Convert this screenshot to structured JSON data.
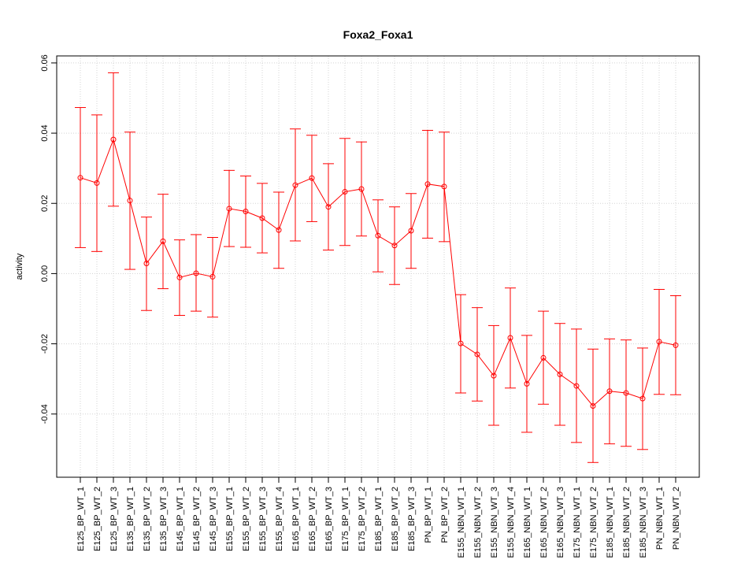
{
  "chart_data": {
    "type": "line",
    "title": "Foxa2_Foxa1",
    "xlabel": "",
    "ylabel": "activity",
    "ylim": [
      -0.058,
      0.062
    ],
    "y_ticks": [
      -0.04,
      -0.02,
      0.0,
      0.02,
      0.04,
      0.06
    ],
    "y_tick_labels": [
      "-0.04",
      "-0.02",
      "0.00",
      "0.02",
      "0.04",
      "0.06"
    ],
    "grid": true,
    "colors": {
      "series": "#ff0000",
      "grid": "#d3d3d3",
      "axis": "#000000"
    },
    "categories": [
      "E125_BP_WT_1",
      "E125_BP_WT_2",
      "E125_BP_WT_3",
      "E135_BP_WT_1",
      "E135_BP_WT_2",
      "E135_BP_WT_3",
      "E145_BP_WT_1",
      "E145_BP_WT_2",
      "E145_BP_WT_3",
      "E155_BP_WT_1",
      "E155_BP_WT_2",
      "E155_BP_WT_3",
      "E155_BP_WT_4",
      "E165_BP_WT_1",
      "E165_BP_WT_2",
      "E165_BP_WT_3",
      "E175_BP_WT_1",
      "E175_BP_WT_2",
      "E185_BP_WT_1",
      "E185_BP_WT_2",
      "E185_BP_WT_3",
      "PN_BP_WT_1",
      "PN_BP_WT_2",
      "E155_NBN_WT_1",
      "E155_NBN_WT_2",
      "E155_NBN_WT_3",
      "E155_NBN_WT_4",
      "E165_NBN_WT_1",
      "E165_NBN_WT_2",
      "E165_NBN_WT_3",
      "E175_NBN_WT_1",
      "E175_NBN_WT_2",
      "E185_NBN_WT_1",
      "E185_NBN_WT_2",
      "E185_NBN_WT_3",
      "PN_NBN_WT_1",
      "PN_NBN_WT_2"
    ],
    "values": [
      0.0273,
      0.0258,
      0.0382,
      0.0208,
      0.0029,
      0.0092,
      -0.0011,
      0.0001,
      -0.0009,
      0.0185,
      0.0177,
      0.0158,
      0.0124,
      0.0252,
      0.0272,
      0.019,
      0.0233,
      0.0241,
      0.0108,
      0.008,
      0.0122,
      0.0255,
      0.0248,
      -0.0199,
      -0.023,
      -0.0291,
      -0.0183,
      -0.0314,
      -0.024,
      -0.0287,
      -0.032,
      -0.0377,
      -0.0335,
      -0.034,
      -0.0356,
      -0.0194,
      -0.0204
    ],
    "error_upper": [
      0.0473,
      0.0452,
      0.0572,
      0.0403,
      0.0161,
      0.0226,
      0.0096,
      0.0111,
      0.0103,
      0.0294,
      0.0278,
      0.0257,
      0.0232,
      0.0412,
      0.0394,
      0.0313,
      0.0385,
      0.0375,
      0.021,
      0.019,
      0.0228,
      0.0408,
      0.0403,
      -0.006,
      -0.0097,
      -0.0148,
      -0.0041,
      -0.0176,
      -0.0107,
      -0.0142,
      -0.0158,
      -0.0215,
      -0.0186,
      -0.0189,
      -0.0212,
      -0.0045,
      -0.0063
    ],
    "error_lower": [
      0.0074,
      0.0063,
      0.0192,
      0.0012,
      -0.0105,
      -0.0043,
      -0.0119,
      -0.0107,
      -0.0124,
      0.0077,
      0.0075,
      0.0059,
      0.0015,
      0.0093,
      0.0148,
      0.0067,
      0.008,
      0.0107,
      0.0005,
      -0.0031,
      0.0015,
      0.0101,
      0.0091,
      -0.034,
      -0.0363,
      -0.0432,
      -0.0326,
      -0.0452,
      -0.0372,
      -0.0432,
      -0.0481,
      -0.0538,
      -0.0485,
      -0.0492,
      -0.0501,
      -0.0344,
      -0.0345
    ]
  }
}
